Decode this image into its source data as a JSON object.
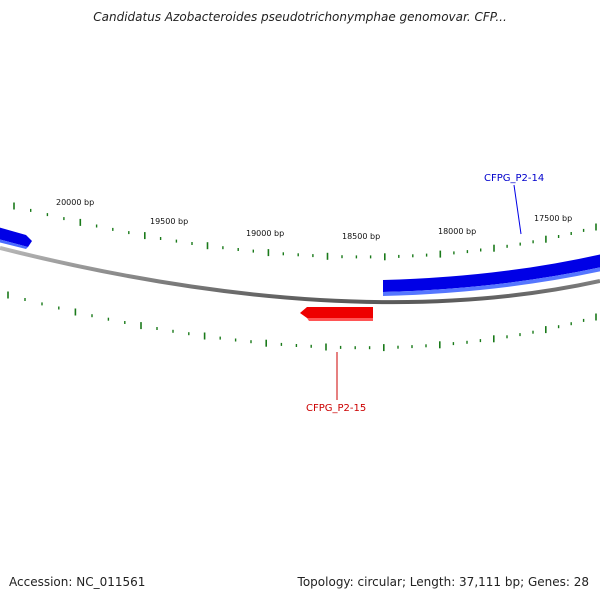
{
  "title": "Candidatus Azobacteroides pseudotrichonymphae genomovar. CFP...",
  "footer": {
    "accession": "Accession: NC_011561",
    "topology": "Topology: circular; Length: 37,111 bp; Genes: 28"
  },
  "colors": {
    "backbone": "#8a8a8a",
    "forward_gene": "#0000e6",
    "reverse_gene": "#ee0000",
    "ticks": "#1a7a1a"
  },
  "scale_labels": [
    "20000 bp",
    "19500 bp",
    "19000 bp",
    "18500 bp",
    "18000 bp",
    "17500 bp"
  ],
  "genes": [
    {
      "label": "CFPG_P2-14",
      "strand": "forward",
      "color": "#0000e6"
    },
    {
      "label": "CFPG_P2-15",
      "strand": "reverse",
      "color": "#ee0000"
    },
    {
      "label": "",
      "strand": "forward",
      "color": "#0000e6"
    }
  ]
}
